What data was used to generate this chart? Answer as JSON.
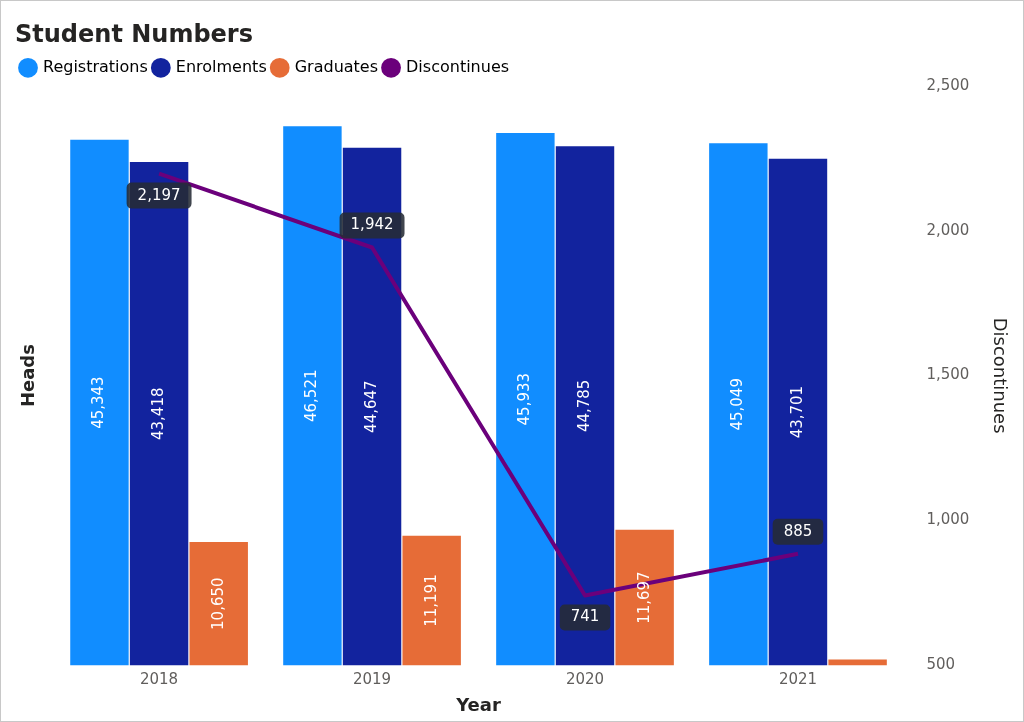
{
  "chart_data": {
    "type": "bar",
    "title": "Student Numbers",
    "xlabel": "Year",
    "ylabel": "Heads",
    "y2label": "Discontinues",
    "categories": [
      "2018",
      "2019",
      "2020",
      "2021"
    ],
    "series": [
      {
        "name": "Registrations",
        "color": "#118dff",
        "values": [
          45343,
          46521,
          45933,
          45049
        ],
        "value_labels": [
          "45,343",
          "46,521",
          "45,933",
          "45,049"
        ]
      },
      {
        "name": "Enrolments",
        "color": "#12239e",
        "values": [
          43418,
          44647,
          44785,
          43701
        ],
        "value_labels": [
          "43,418",
          "44,647",
          "44,785",
          "43,701"
        ]
      },
      {
        "name": "Graduates",
        "color": "#e66c37",
        "values": [
          10650,
          11191,
          11697,
          500
        ],
        "value_labels": [
          "10,650",
          "11,191",
          "11,697",
          null
        ]
      },
      {
        "name": "Discontinues",
        "type": "line",
        "axis": "y2",
        "color": "#6b007b",
        "values": [
          2197,
          1942,
          741,
          885
        ],
        "value_labels": [
          "2,197",
          "1,942",
          "741",
          "885"
        ]
      }
    ],
    "y2lim": [
      500,
      2500
    ],
    "y2ticks": [
      {
        "value": 500,
        "label": "500"
      },
      {
        "value": 1000,
        "label": "1,000"
      },
      {
        "value": 1500,
        "label": "1,500"
      },
      {
        "value": 2000,
        "label": "2,000"
      },
      {
        "value": 2500,
        "label": "2,500"
      }
    ],
    "tick_labels": [
      "x",
      "y2"
    ],
    "grid": false,
    "legend": "top left",
    "marker": "none"
  }
}
